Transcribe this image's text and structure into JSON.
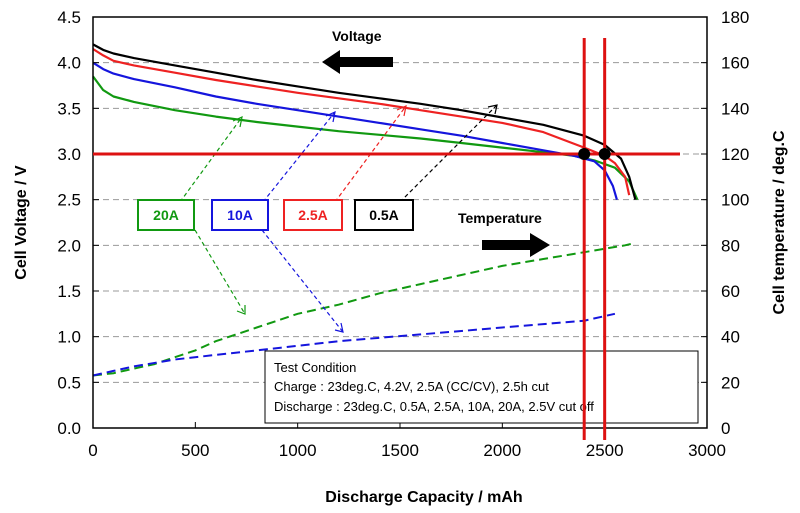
{
  "chart_data": {
    "type": "line",
    "xlabel": "Discharge Capacity / mAh",
    "ylabel_left": "Cell Voltage / V",
    "ylabel_right": "Cell temperature / deg.C",
    "xlim": [
      0,
      3000
    ],
    "ylim_left": [
      0,
      4.5
    ],
    "ylim_right": [
      0,
      180
    ],
    "x_ticks": [
      0,
      500,
      1000,
      1500,
      2000,
      2500,
      3000
    ],
    "x_tick_labels": [
      "0",
      "500",
      "1000",
      "1500",
      "2000",
      "2500",
      "3000"
    ],
    "y_left_ticks": [
      0,
      0.5,
      1.0,
      1.5,
      2.0,
      2.5,
      3.0,
      3.5,
      4.0,
      4.5
    ],
    "y_left_tick_labels": [
      "0.0",
      "0.5",
      "1.0",
      "1.5",
      "2.0",
      "2.5",
      "3.0",
      "3.5",
      "4.0",
      "4.5"
    ],
    "y_right_ticks": [
      0,
      20,
      40,
      60,
      80,
      100,
      120,
      140,
      160,
      180
    ],
    "y_right_tick_labels": [
      "0",
      "20",
      "40",
      "60",
      "80",
      "100",
      "120",
      "140",
      "160",
      "180"
    ],
    "grid": "horizontal dashed",
    "voltage_series": [
      {
        "name": "20A",
        "color": "#119911",
        "x": [
          0,
          50,
          100,
          200,
          400,
          600,
          800,
          1000,
          1200,
          1400,
          1600,
          1800,
          2000,
          2200,
          2350,
          2450,
          2550,
          2620,
          2660
        ],
        "y": [
          3.85,
          3.7,
          3.63,
          3.57,
          3.48,
          3.41,
          3.35,
          3.3,
          3.25,
          3.21,
          3.17,
          3.12,
          3.07,
          3.02,
          2.98,
          2.93,
          2.85,
          2.7,
          2.5
        ]
      },
      {
        "name": "10A",
        "color": "#1515dd",
        "x": [
          0,
          50,
          100,
          200,
          400,
          600,
          800,
          1000,
          1200,
          1400,
          1600,
          1800,
          2000,
          2200,
          2350,
          2450,
          2500,
          2540,
          2560
        ],
        "y": [
          4.0,
          3.93,
          3.88,
          3.82,
          3.73,
          3.63,
          3.55,
          3.48,
          3.41,
          3.34,
          3.27,
          3.2,
          3.12,
          3.04,
          2.98,
          2.92,
          2.82,
          2.65,
          2.5
        ]
      },
      {
        "name": "2.5A",
        "color": "#ee2222",
        "x": [
          0,
          50,
          100,
          200,
          400,
          600,
          800,
          1000,
          1200,
          1400,
          1600,
          1800,
          2000,
          2200,
          2400,
          2500,
          2550,
          2600,
          2620
        ],
        "y": [
          4.15,
          4.08,
          4.02,
          3.97,
          3.89,
          3.81,
          3.74,
          3.67,
          3.61,
          3.55,
          3.48,
          3.41,
          3.34,
          3.24,
          3.07,
          2.98,
          2.9,
          2.75,
          2.55
        ]
      },
      {
        "name": "0.5A",
        "color": "#000000",
        "x": [
          0,
          50,
          100,
          200,
          400,
          600,
          800,
          1000,
          1200,
          1400,
          1600,
          1800,
          2000,
          2200,
          2400,
          2500,
          2580,
          2620,
          2650
        ],
        "y": [
          4.2,
          4.14,
          4.1,
          4.05,
          3.97,
          3.89,
          3.81,
          3.74,
          3.67,
          3.61,
          3.55,
          3.48,
          3.4,
          3.32,
          3.2,
          3.1,
          2.95,
          2.75,
          2.5
        ]
      }
    ],
    "temperature_series": [
      {
        "name": "20A",
        "color": "#119911",
        "x": [
          0,
          100,
          200,
          300,
          400,
          500,
          600,
          700,
          800,
          900,
          1000,
          1200,
          1400,
          1600,
          1800,
          2000,
          2200,
          2400,
          2600,
          2650
        ],
        "y": [
          23,
          24,
          26,
          28,
          31,
          34,
          38,
          41,
          44,
          47,
          50,
          54,
          59,
          63,
          67,
          71,
          74,
          77,
          80,
          81
        ]
      },
      {
        "name": "10A",
        "color": "#1515dd",
        "x": [
          0,
          100,
          200,
          400,
          600,
          800,
          1000,
          1200,
          1400,
          1600,
          1800,
          2000,
          2200,
          2400,
          2550
        ],
        "y": [
          23,
          25,
          27,
          30,
          32,
          34,
          36,
          38,
          39.5,
          41,
          42.5,
          44,
          45.5,
          47,
          50
        ]
      }
    ],
    "labels": [
      "20A",
      "10A",
      "2.5A",
      "0.5A"
    ],
    "annotations": {
      "voltage_arrow": "Voltage",
      "temperature_arrow": "Temperature",
      "test_condition_title": "Test Condition",
      "test_condition_charge": "Charge : 23deg.C, 4.2V, 2.5A (CC/CV), 2.5h cut",
      "test_condition_discharge": "Discharge : 23deg.C, 0.5A, 2.5A, 10A, 20A, 2.5V cut off"
    },
    "marker_overlay": {
      "hline_y": 3.0,
      "vlines_x": [
        2400,
        2500
      ],
      "points": [
        {
          "x": 2400,
          "y": 3.0
        },
        {
          "x": 2500,
          "y": 3.0
        }
      ],
      "color": "#dd1111"
    }
  }
}
